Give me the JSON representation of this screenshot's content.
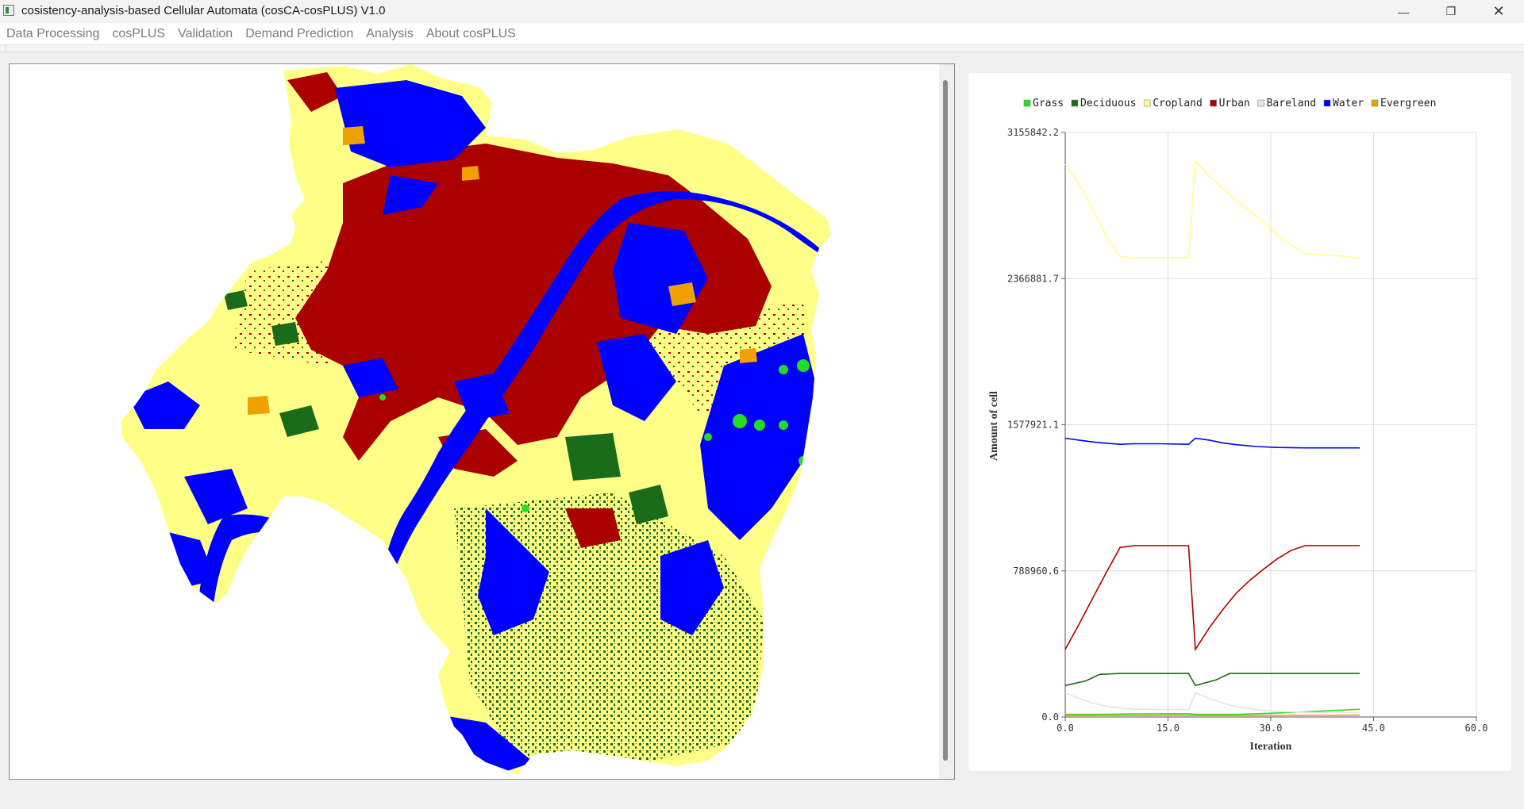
{
  "window": {
    "title": "cosistency-analysis-based Cellular Automata (cosCA-cosPLUS) V1.0",
    "minimize_glyph": "—",
    "maximize_glyph": "❐",
    "close_glyph": "✕"
  },
  "menu": [
    {
      "label": "Data Processing"
    },
    {
      "label": "cosPLUS"
    },
    {
      "label": "Validation"
    },
    {
      "label": "Demand Prediction"
    },
    {
      "label": "Analysis"
    },
    {
      "label": "About cosPLUS"
    }
  ],
  "colors": {
    "Grass": "#22dd22",
    "Deciduous": "#1a6b1a",
    "Cropland": "#ffff88",
    "Urban": "#aa0000",
    "Bareland": "#e4e4e4",
    "Water": "#0000ff",
    "Evergreen": "#f0a000"
  },
  "map": {
    "icon": "land-use-map",
    "classes": [
      "Cropland",
      "Urban",
      "Water",
      "Deciduous",
      "Grass",
      "Evergreen",
      "Bareland"
    ]
  },
  "chart_data": {
    "type": "line",
    "title": "",
    "xlabel": "Iteration",
    "ylabel": "Amount of cell",
    "xlim": [
      0,
      60
    ],
    "ylim": [
      0,
      3155842.2
    ],
    "xticks": [
      "0.0",
      "15.0",
      "30.0",
      "45.0",
      "60.0"
    ],
    "yticks": [
      "0.0",
      "788960.6",
      "1577921.1",
      "2366881.7",
      "3155842.2"
    ],
    "grid": true,
    "legend_position": "top",
    "series": [
      {
        "name": "Grass",
        "color": "#22dd22",
        "x": [
          0,
          5,
          10,
          18,
          19,
          25,
          30,
          35,
          40,
          43
        ],
        "y": [
          14000,
          14000,
          17000,
          17500,
          14000,
          14000,
          20000,
          28000,
          36000,
          42000
        ]
      },
      {
        "name": "Deciduous",
        "color": "#1a6b1a",
        "x": [
          0,
          3,
          5,
          8,
          18,
          19,
          22,
          24,
          26,
          30,
          43
        ],
        "y": [
          170000,
          195000,
          230000,
          235000,
          235000,
          170000,
          200000,
          235000,
          235000,
          235000,
          235000
        ]
      },
      {
        "name": "Cropland",
        "color": "#ffff88",
        "x": [
          0,
          2,
          4,
          6,
          8,
          10,
          14,
          18,
          19,
          21,
          24,
          28,
          32,
          35,
          40,
          43
        ],
        "y": [
          2985000,
          2880000,
          2740000,
          2600000,
          2485000,
          2480000,
          2480000,
          2480000,
          3000000,
          2920000,
          2820000,
          2700000,
          2570000,
          2500000,
          2490000,
          2475000
        ]
      },
      {
        "name": "Urban",
        "color": "#aa0000",
        "x": [
          0,
          2,
          4,
          6,
          8,
          10,
          14,
          18,
          19,
          21,
          23,
          25,
          27,
          29,
          31,
          33,
          35,
          40,
          43
        ],
        "y": [
          365000,
          500000,
          640000,
          780000,
          915000,
          925000,
          925000,
          925000,
          365000,
          480000,
          580000,
          670000,
          740000,
          800000,
          855000,
          900000,
          925000,
          925000,
          925000
        ]
      },
      {
        "name": "Bareland",
        "color": "#e4e4e4",
        "x": [
          0,
          2,
          4,
          6,
          8,
          10,
          14,
          18,
          19,
          21,
          23,
          25,
          28,
          31,
          35,
          40,
          43
        ],
        "y": [
          130000,
          100000,
          75000,
          58000,
          48000,
          42000,
          40000,
          40000,
          130000,
          100000,
          75000,
          55000,
          40000,
          30000,
          25000,
          24000,
          23000
        ]
      },
      {
        "name": "Water",
        "color": "#0000ff",
        "x": [
          0,
          2,
          4,
          6,
          8,
          10,
          14,
          18,
          19,
          21,
          23,
          25,
          28,
          31,
          35,
          40,
          43
        ],
        "y": [
          1505000,
          1495000,
          1485000,
          1478000,
          1472000,
          1475000,
          1475000,
          1472000,
          1505000,
          1495000,
          1480000,
          1470000,
          1460000,
          1455000,
          1453000,
          1453000,
          1453000
        ]
      },
      {
        "name": "Evergreen",
        "color": "#f0a000",
        "x": [
          0,
          5,
          10,
          18,
          19,
          25,
          30,
          35,
          40,
          43
        ],
        "y": [
          8000,
          8000,
          9000,
          9000,
          8000,
          8000,
          8500,
          9000,
          9500,
          10000
        ]
      }
    ]
  }
}
